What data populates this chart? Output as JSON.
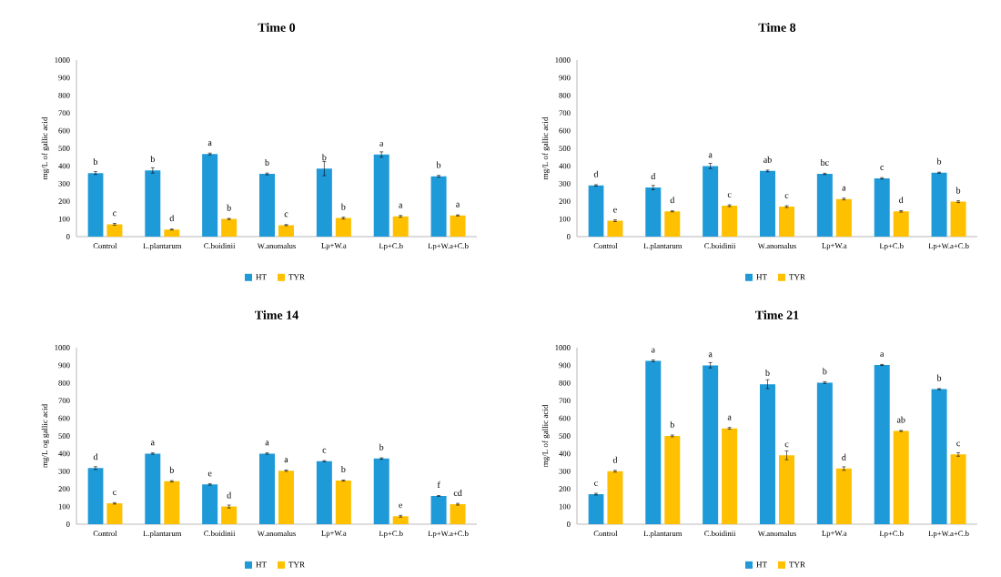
{
  "chart_data": [
    {
      "type": "bar",
      "title": "Time 0",
      "ylabel": "mg/L of gallic acid",
      "categories": [
        "Control",
        "L.plantarum",
        "C.boidinii",
        "W.anomalus",
        "Lp+W.a",
        "Lp+C.b",
        "Lp+W.a+C.b"
      ],
      "ylim": [
        0,
        1000
      ],
      "yticks": [
        0,
        100,
        200,
        300,
        400,
        500,
        600,
        700,
        800,
        900,
        1000
      ],
      "legend": "bottom",
      "series": [
        {
          "name": "HT",
          "color": "#1f9ad8",
          "values": [
            360,
            375,
            468,
            355,
            385,
            465,
            342
          ],
          "errors": [
            8,
            15,
            5,
            5,
            40,
            15,
            5
          ],
          "value_labels": [
            "b",
            "b",
            "a",
            "b",
            "b",
            "a",
            "b"
          ]
        },
        {
          "name": "TYR",
          "color": "#ffc000",
          "values": [
            70,
            40,
            100,
            65,
            105,
            115,
            120
          ],
          "errors": [
            5,
            3,
            3,
            3,
            5,
            5,
            3
          ],
          "value_labels": [
            "c",
            "d",
            "b",
            "c",
            "b",
            "a",
            "a"
          ]
        }
      ]
    },
    {
      "type": "bar",
      "title": "Time 8",
      "ylabel": "mg/L of gallic acid",
      "categories": [
        "Control",
        "L.plantarum",
        "C.boidinii",
        "W.anomalus",
        "Lp+W.a",
        "Lp+C.b",
        "Lp+W.a+C.b"
      ],
      "ylim": [
        0,
        1000
      ],
      "yticks": [
        0,
        100,
        200,
        300,
        400,
        500,
        600,
        700,
        800,
        900,
        1000
      ],
      "legend": "bottom",
      "series": [
        {
          "name": "HT",
          "color": "#1f9ad8",
          "values": [
            290,
            278,
            400,
            372,
            355,
            330,
            362
          ],
          "errors": [
            4,
            12,
            15,
            5,
            4,
            4,
            3
          ],
          "value_labels": [
            "d",
            "d",
            "a",
            "ab",
            "bc",
            "c",
            "b"
          ]
        },
        {
          "name": "TYR",
          "color": "#ffc000",
          "values": [
            90,
            143,
            175,
            170,
            213,
            143,
            198
          ],
          "errors": [
            5,
            3,
            5,
            5,
            5,
            4,
            5
          ],
          "value_labels": [
            "e",
            "d",
            "c",
            "c",
            "a",
            "d",
            "b"
          ]
        }
      ]
    },
    {
      "type": "bar",
      "title": "Time 14",
      "ylabel": "mg/L og gallic acid",
      "categories": [
        "Control",
        "L.plantarum",
        "C.boidinii",
        "W.anomalus",
        "Lp+W.a",
        "Lp+C.b",
        "Lp+W.a+C.b"
      ],
      "ylim": [
        0,
        1000
      ],
      "yticks": [
        0,
        100,
        200,
        300,
        400,
        500,
        600,
        700,
        800,
        900,
        1000
      ],
      "legend": "bottom",
      "series": [
        {
          "name": "HT",
          "color": "#1f9ad8",
          "values": [
            318,
            400,
            225,
            400,
            357,
            372,
            160
          ],
          "errors": [
            8,
            4,
            4,
            4,
            3,
            4,
            2
          ],
          "value_labels": [
            "d",
            "a",
            "e",
            "a",
            "c",
            "b",
            "f"
          ]
        },
        {
          "name": "TYR",
          "color": "#ffc000",
          "values": [
            118,
            243,
            100,
            303,
            247,
            45,
            113
          ],
          "errors": [
            4,
            4,
            8,
            4,
            3,
            5,
            5
          ],
          "value_labels": [
            "c",
            "b",
            "d",
            "a",
            "b",
            "e",
            "cd"
          ]
        }
      ]
    },
    {
      "type": "bar",
      "title": "Time 21",
      "ylabel": "mg/L of gallic acid",
      "categories": [
        "Control",
        "L.plantarum",
        "C.boidinii",
        "W.anomalus",
        "Lp+W.a",
        "Lp+C.b",
        "Lp+W.a+C.b"
      ],
      "ylim": [
        0,
        1000
      ],
      "yticks": [
        0,
        100,
        200,
        300,
        400,
        500,
        600,
        700,
        800,
        900,
        1000
      ],
      "legend": "bottom",
      "series": [
        {
          "name": "HT",
          "color": "#1f9ad8",
          "values": [
            170,
            925,
            900,
            793,
            802,
            902,
            765
          ],
          "errors": [
            5,
            5,
            15,
            25,
            5,
            3,
            3
          ],
          "value_labels": [
            "c",
            "a",
            "a",
            "b",
            "b",
            "a",
            "b"
          ]
        },
        {
          "name": "TYR",
          "color": "#ffc000",
          "values": [
            300,
            500,
            543,
            390,
            315,
            528,
            395
          ],
          "errors": [
            5,
            5,
            5,
            25,
            10,
            3,
            10
          ],
          "value_labels": [
            "d",
            "b",
            "a",
            "c",
            "d",
            "ab",
            "c"
          ]
        }
      ]
    }
  ]
}
